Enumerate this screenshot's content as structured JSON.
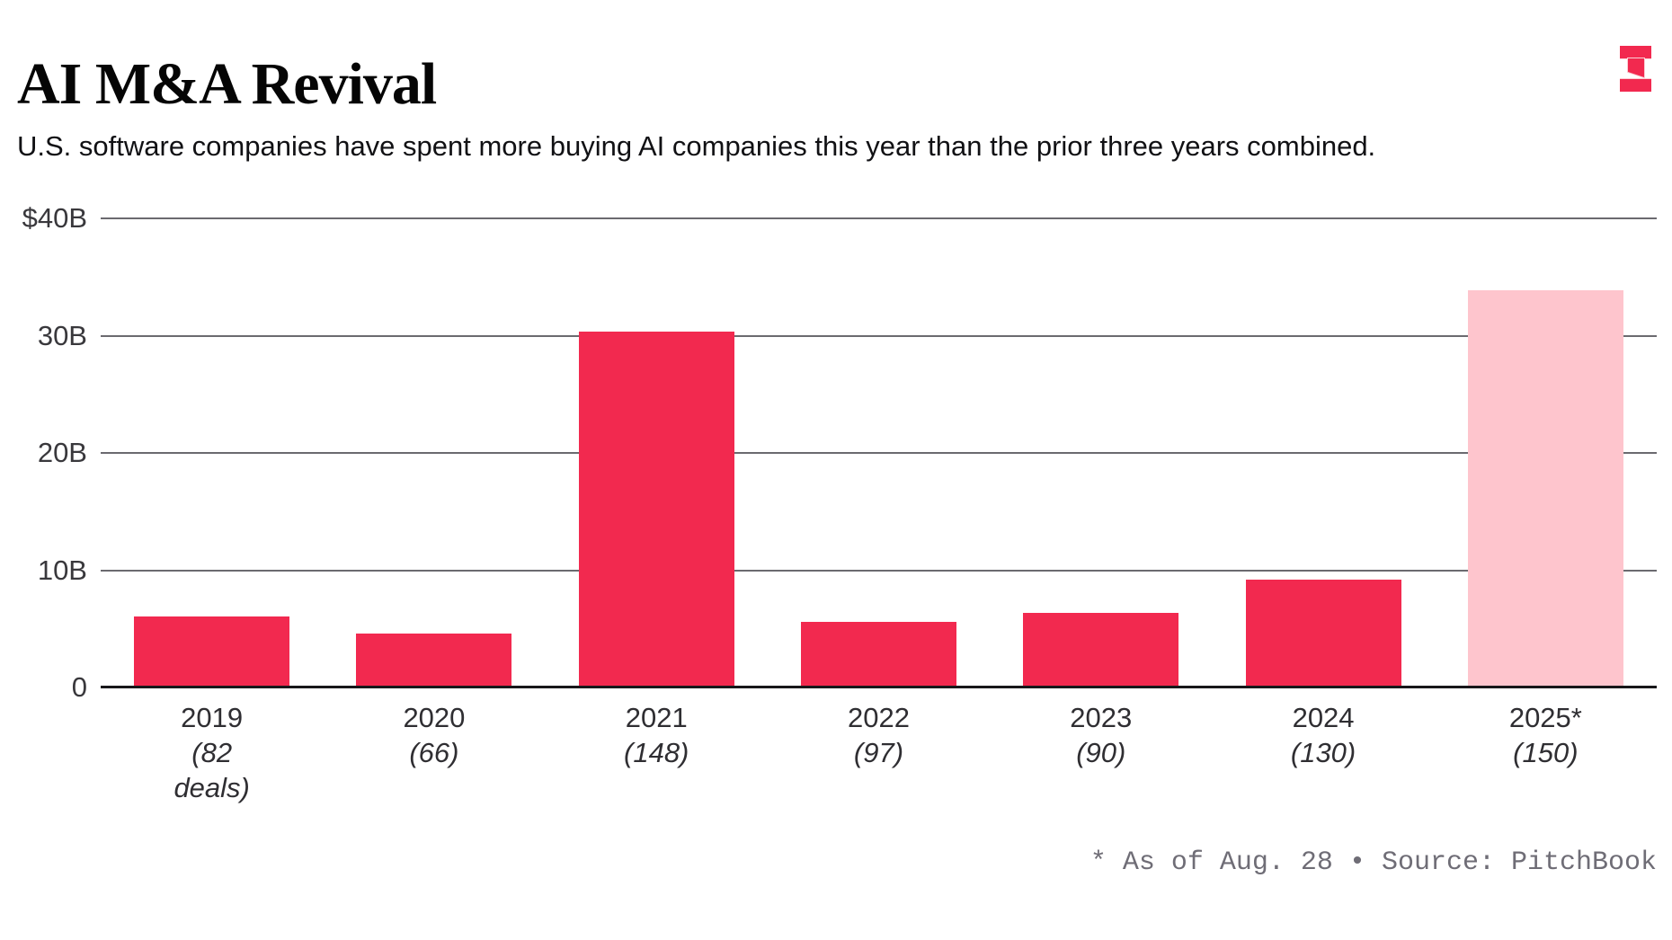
{
  "header": {
    "title": "AI M&A Revival",
    "subtitle": "U.S. software companies have spent more buying AI companies this year than the prior three years combined.",
    "logo": "the-information-logo"
  },
  "chart_data": {
    "type": "bar",
    "title": "AI M&A Revival",
    "subtitle": "U.S. software companies have spent more buying AI companies this year than the prior three years combined.",
    "categories": [
      "2019",
      "2020",
      "2021",
      "2022",
      "2023",
      "2024",
      "2025*"
    ],
    "values": [
      6.0,
      4.5,
      30.3,
      5.5,
      6.3,
      9.1,
      33.8
    ],
    "unit": "billions USD",
    "deal_counts": [
      82,
      66,
      148,
      97,
      90,
      130,
      150
    ],
    "category_sublabels": [
      [
        "(82",
        "deals)"
      ],
      [
        "(66)"
      ],
      [
        "(148)"
      ],
      [
        "(97)"
      ],
      [
        "(90)"
      ],
      [
        "(130)"
      ],
      [
        "(150)"
      ]
    ],
    "xlabel": "",
    "ylabel": "",
    "ylim": [
      0,
      40
    ],
    "yticks": [
      {
        "value": 40,
        "label": "$40B"
      },
      {
        "value": 30,
        "label": "30B"
      },
      {
        "value": 20,
        "label": "20B"
      },
      {
        "value": 10,
        "label": "10B"
      },
      {
        "value": 0,
        "label": "0"
      }
    ],
    "grid": true,
    "legend": "none",
    "bar_colors": [
      "#F2294F",
      "#F2294F",
      "#F2294F",
      "#F2294F",
      "#F2294F",
      "#F2294F",
      "#FEC5CD"
    ],
    "note": "* As of Aug. 28",
    "source": "Source: PitchBook"
  },
  "footer": {
    "note": "* As of Aug. 28 • Source: PitchBook"
  },
  "colors": {
    "bar": "#F2294F",
    "bar_highlight": "#FEC5CD",
    "gridline": "#6B6A6F",
    "baseline": "#18171A",
    "axis_text": "#39383C",
    "footer_text": "#6F6D76",
    "logo": "#F2294F",
    "logo_halo": "#FAD0D6",
    "background": "#FFFFFF"
  }
}
